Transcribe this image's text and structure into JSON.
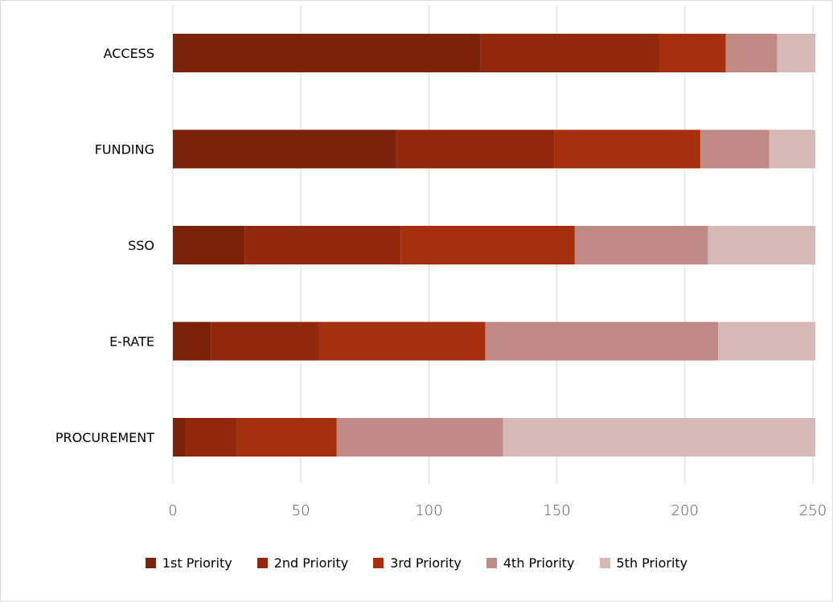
{
  "chart_data": {
    "type": "bar",
    "orientation": "horizontal",
    "stacked": true,
    "title": "",
    "xlabel": "",
    "ylabel": "",
    "xlim": [
      0,
      250
    ],
    "x_ticks": [
      0,
      50,
      100,
      150,
      200,
      250
    ],
    "categories": [
      "ACCESS",
      "FUNDING",
      "SSO",
      "E-RATE",
      "PROCUREMENT"
    ],
    "series": [
      {
        "name": "1st Priority",
        "color": "#7b220a",
        "values": [
          120,
          87,
          28,
          15,
          5
        ]
      },
      {
        "name": "2nd Priority",
        "color": "#92290d",
        "values": [
          70,
          62,
          61,
          42,
          20
        ]
      },
      {
        "name": "3rd Priority",
        "color": "#a6300e",
        "values": [
          26,
          57,
          68,
          65,
          39
        ]
      },
      {
        "name": "4th Priority",
        "color": "#bf8a85",
        "values": [
          20,
          27,
          52,
          91,
          65
        ]
      },
      {
        "name": "5th Priority",
        "color": "#d6b8b5",
        "values": [
          15,
          18,
          42,
          38,
          122
        ]
      }
    ],
    "grid": true,
    "legend_position": "bottom"
  }
}
